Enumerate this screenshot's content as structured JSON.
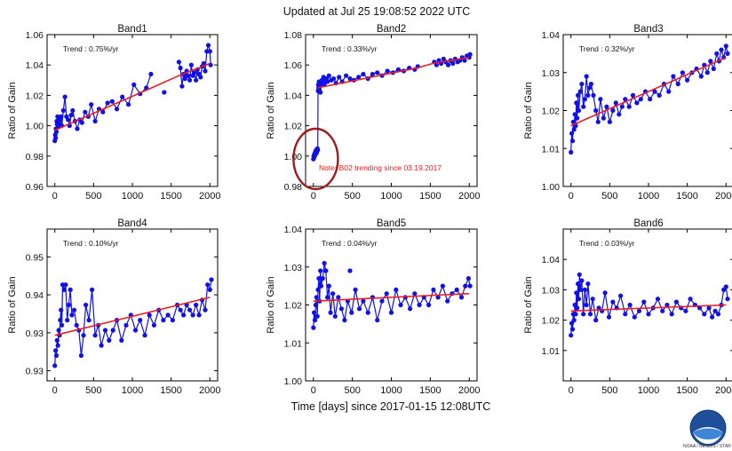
{
  "page": {
    "title": "Updated at Jul 25 19:08:52 2022 UTC",
    "x_title": "Time [days] since 2017-01-15 12:08UTC",
    "credit": "NOAA / NESDIS / STAR"
  },
  "colors": {
    "data": "#1010e8",
    "trend": "#ee1c1c",
    "note": "#ee1c1c",
    "highlight": "#9e1b1b"
  },
  "chart_data": [
    {
      "type": "scatter",
      "title": "Band1",
      "ylabel": "Ratio of Gain",
      "trend_label": "Trend",
      "trend_value": "0.75%/yr",
      "xlim": [
        -100,
        2100
      ],
      "ylim": [
        0.96,
        1.06
      ],
      "xticks": [
        0,
        500,
        1000,
        1500,
        2000
      ],
      "yticks": [
        0.96,
        0.98,
        1.0,
        1.02,
        1.04,
        1.06
      ],
      "ytick_labels": [
        "0.96",
        "0.98",
        "1.00",
        "1.02",
        "1.04",
        "1.06"
      ],
      "trend": [
        [
          0,
          0.997
        ],
        [
          1250,
          1.025
        ],
        [
          1600,
          1.033
        ],
        [
          2000,
          1.041
        ]
      ],
      "series": [
        {
          "x": [
            0,
            5,
            10,
            15,
            20,
            25,
            30,
            35,
            40,
            50,
            60,
            70,
            80,
            90,
            110,
            130,
            150,
            170,
            190,
            210,
            230,
            260,
            290,
            320,
            350,
            390,
            430,
            470,
            520,
            570,
            620,
            680,
            740,
            800,
            870,
            950,
            1020,
            1100,
            1180,
            1240
          ],
          "y": [
            0.99,
            0.994,
            0.992,
            0.998,
            0.996,
            1.003,
            1.001,
            1.006,
            0.999,
            1.005,
            1.001,
            1.004,
            1.006,
            1.0,
            1.01,
            1.019,
            1.006,
            1.004,
            1.0,
            1.007,
            1.01,
            1.003,
            0.998,
            1.004,
            1.002,
            1.009,
            1.006,
            1.014,
            1.003,
            1.011,
            1.009,
            1.015,
            1.016,
            1.011,
            1.019,
            1.014,
            1.027,
            1.021,
            1.025,
            1.034
          ]
        },
        {
          "x": [
            1410
          ],
          "y": [
            1.022
          ]
        },
        {
          "x": [
            1600,
            1620,
            1640,
            1660,
            1680,
            1700,
            1720,
            1740,
            1760,
            1780,
            1800,
            1820,
            1840,
            1860,
            1880,
            1900,
            1920,
            1940,
            1960,
            1980,
            2000,
            2010
          ],
          "y": [
            1.042,
            1.038,
            1.026,
            1.034,
            1.031,
            1.036,
            1.033,
            1.03,
            1.04,
            1.033,
            1.035,
            1.03,
            1.037,
            1.034,
            1.032,
            1.039,
            1.041,
            1.036,
            1.049,
            1.053,
            1.049,
            1.04
          ]
        }
      ]
    },
    {
      "type": "scatter",
      "title": "Band2",
      "ylabel": "Ratio of Gain",
      "trend_label": "Trend",
      "trend_value": "0.33%/yr",
      "note": "Note: B02 trending since 03.19.2017",
      "xlim": [
        -100,
        2100
      ],
      "ylim": [
        0.98,
        1.08
      ],
      "xticks": [
        0,
        500,
        1000,
        1500,
        2000
      ],
      "yticks": [
        0.98,
        1.0,
        1.02,
        1.04,
        1.06,
        1.08
      ],
      "ytick_labels": [
        "0.98",
        "1.00",
        "1.02",
        "1.04",
        "1.06",
        "1.08"
      ],
      "trend": [
        [
          60,
          1.045
        ],
        [
          1330,
          1.058
        ],
        [
          1530,
          1.061
        ],
        [
          2000,
          1.065
        ]
      ],
      "series": [
        {
          "x": [
            0,
            4,
            8,
            12,
            16,
            20,
            24,
            28,
            32,
            36,
            40,
            44,
            48,
            52,
            56,
            60,
            64,
            68,
            72,
            76,
            80,
            90,
            100,
            110,
            120,
            130,
            140,
            160,
            180,
            200,
            230,
            260,
            290,
            330,
            370,
            420,
            470,
            520,
            580,
            640,
            700,
            760,
            820,
            880,
            950,
            1020,
            1090,
            1160,
            1230,
            1300,
            1340
          ],
          "y": [
            0.998,
            1.0,
            0.999,
            1.001,
            1.0,
            1.002,
            1.001,
            1.003,
            1.002,
            1.004,
            1.002,
            1.003,
            1.004,
            1.005,
            1.004,
            1.043,
            1.047,
            1.045,
            1.049,
            1.044,
            1.046,
            1.042,
            1.047,
            1.05,
            1.049,
            1.052,
            1.047,
            1.051,
            1.049,
            1.053,
            1.05,
            1.051,
            1.048,
            1.052,
            1.049,
            1.053,
            1.051,
            1.05,
            1.052,
            1.054,
            1.051,
            1.054,
            1.055,
            1.053,
            1.056,
            1.055,
            1.057,
            1.056,
            1.058,
            1.057,
            1.059
          ]
        },
        {
          "x": [
            1550,
            1580,
            1610,
            1640,
            1670,
            1700,
            1730,
            1760,
            1790,
            1820,
            1850,
            1880,
            1910,
            1940,
            1970,
            2000,
            2010
          ],
          "y": [
            1.062,
            1.06,
            1.063,
            1.061,
            1.064,
            1.062,
            1.06,
            1.063,
            1.061,
            1.064,
            1.062,
            1.063,
            1.065,
            1.063,
            1.066,
            1.065,
            1.067
          ]
        }
      ]
    },
    {
      "type": "scatter",
      "title": "Band3",
      "ylabel": "Ratio of Gain",
      "trend_label": "Trend",
      "trend_value": "0.32%/yr",
      "xlim": [
        -100,
        2100
      ],
      "ylim": [
        1.0,
        1.04
      ],
      "xticks": [
        0,
        500,
        1000,
        1500,
        2000
      ],
      "yticks": [
        1.0,
        1.01,
        1.02,
        1.03,
        1.04
      ],
      "ytick_labels": [
        "1.00",
        "1.01",
        "1.02",
        "1.03",
        "1.04"
      ],
      "trend": [
        [
          0,
          1.016
        ],
        [
          2000,
          1.034
        ]
      ],
      "series": [
        {
          "x": [
            0,
            10,
            20,
            30,
            40,
            50,
            60,
            70,
            80,
            90,
            100,
            120,
            140,
            160,
            180,
            200,
            220,
            240,
            260,
            290,
            320,
            350,
            380,
            420,
            460,
            500,
            540,
            580,
            620,
            660,
            700,
            750,
            800,
            850,
            900,
            960,
            1020,
            1080,
            1140,
            1200,
            1260,
            1320,
            1380,
            1440,
            1500,
            1560,
            1620,
            1680,
            1720,
            1760,
            1800,
            1840,
            1880,
            1910,
            1940,
            1970,
            2000,
            2020
          ],
          "y": [
            1.009,
            1.014,
            1.012,
            1.017,
            1.015,
            1.019,
            1.016,
            1.022,
            1.018,
            1.024,
            1.02,
            1.025,
            1.027,
            1.021,
            1.023,
            1.029,
            1.024,
            1.026,
            1.027,
            1.024,
            1.02,
            1.017,
            1.023,
            1.018,
            1.021,
            1.017,
            1.02,
            1.022,
            1.019,
            1.021,
            1.023,
            1.021,
            1.024,
            1.022,
            1.023,
            1.025,
            1.023,
            1.025,
            1.024,
            1.027,
            1.025,
            1.029,
            1.027,
            1.03,
            1.028,
            1.03,
            1.031,
            1.029,
            1.032,
            1.03,
            1.033,
            1.031,
            1.035,
            1.033,
            1.036,
            1.034,
            1.037,
            1.035
          ]
        }
      ]
    },
    {
      "type": "scatter",
      "title": "Band4",
      "ylabel": "Ratio of Gain",
      "trend_label": "Trend",
      "trend_value": "0.10%/yr",
      "xlim": [
        -100,
        2100
      ],
      "ylim": [
        0.923,
        0.953
      ],
      "xticks": [
        0,
        500,
        1000,
        1500,
        2000
      ],
      "yticks": [
        0.925,
        0.9325,
        0.94,
        0.9475
      ],
      "ytick_labels": [
        "0.93",
        "0.93",
        "0.94",
        "0.95"
      ],
      "trend": [
        [
          0,
          0.932
        ],
        [
          2000,
          0.9395
        ]
      ],
      "series": [
        {
          "x": [
            0,
            10,
            20,
            30,
            40,
            50,
            60,
            70,
            80,
            90,
            100,
            120,
            140,
            160,
            180,
            200,
            220,
            250,
            280,
            310,
            340,
            370,
            400,
            440,
            480,
            520,
            560,
            600,
            650,
            700,
            750,
            800,
            860,
            920,
            980,
            1040,
            1100,
            1160,
            1220,
            1280,
            1340,
            1400,
            1460,
            1520,
            1580,
            1620,
            1660,
            1700,
            1740,
            1780,
            1820,
            1860,
            1900,
            1940,
            1970,
            2000,
            2020
          ],
          "y": [
            0.926,
            0.929,
            0.928,
            0.931,
            0.93,
            0.933,
            0.932,
            0.935,
            0.937,
            0.934,
            0.942,
            0.941,
            0.942,
            0.935,
            0.938,
            0.941,
            0.936,
            0.937,
            0.934,
            0.933,
            0.928,
            0.932,
            0.938,
            0.935,
            0.941,
            0.932,
            0.934,
            0.93,
            0.933,
            0.931,
            0.933,
            0.935,
            0.931,
            0.934,
            0.936,
            0.933,
            0.935,
            0.932,
            0.936,
            0.934,
            0.937,
            0.935,
            0.936,
            0.935,
            0.938,
            0.937,
            0.936,
            0.938,
            0.937,
            0.936,
            0.938,
            0.936,
            0.939,
            0.937,
            0.942,
            0.941,
            0.943
          ]
        }
      ]
    },
    {
      "type": "scatter",
      "title": "Band5",
      "ylabel": "Ratio of Gain",
      "trend_label": "Trend",
      "trend_value": "0.04%/yr",
      "xlim": [
        -100,
        2100
      ],
      "ylim": [
        1.0,
        1.04
      ],
      "xticks": [
        0,
        500,
        1000,
        1500,
        2000
      ],
      "yticks": [
        1.0,
        1.01,
        1.02,
        1.03,
        1.04
      ],
      "ytick_labels": [
        "1.00",
        "1.01",
        "1.02",
        "1.03",
        "1.04"
      ],
      "trend": [
        [
          0,
          1.021
        ],
        [
          2000,
          1.023
        ]
      ],
      "series": [
        {
          "x": [
            0,
            10,
            20,
            30,
            40,
            50,
            60,
            70,
            80,
            90,
            100,
            120,
            140,
            160,
            180,
            200,
            220,
            250,
            280,
            320,
            360,
            400,
            440,
            490,
            540,
            590,
            640,
            700,
            760,
            820,
            880,
            940,
            1000,
            1060,
            1120,
            1180,
            1240,
            1300,
            1360,
            1420,
            1480,
            1540,
            1600,
            1660,
            1720,
            1780,
            1840,
            1900,
            1950,
            1990,
            2010
          ],
          "y": [
            1.014,
            1.018,
            1.016,
            1.02,
            1.022,
            1.017,
            1.024,
            1.027,
            1.021,
            1.029,
            1.025,
            1.027,
            1.031,
            1.029,
            1.022,
            1.025,
            1.018,
            1.023,
            1.017,
            1.022,
            1.019,
            1.016,
            1.021,
            1.018,
            1.024,
            1.019,
            1.021,
            1.018,
            1.022,
            1.016,
            1.021,
            1.023,
            1.018,
            1.024,
            1.02,
            1.022,
            1.019,
            1.023,
            1.02,
            1.022,
            1.02,
            1.024,
            1.022,
            1.025,
            1.021,
            1.023,
            1.024,
            1.022,
            1.025,
            1.027,
            1.025
          ]
        },
        {
          "x": [
            470
          ],
          "y": [
            1.029
          ]
        }
      ]
    },
    {
      "type": "scatter",
      "title": "Band6",
      "ylabel": "Ratio of Gain",
      "trend_label": "Trend",
      "trend_value": "0.03%/yr",
      "xlim": [
        -100,
        2100
      ],
      "ylim": [
        1.0,
        1.05
      ],
      "xticks": [
        0,
        500,
        1000,
        1500,
        2000
      ],
      "yticks": [
        1.01,
        1.02,
        1.03,
        1.04
      ],
      "ytick_labels": [
        "1.01",
        "1.02",
        "1.03",
        "1.04"
      ],
      "trend": [
        [
          0,
          1.023
        ],
        [
          2000,
          1.025
        ]
      ],
      "series": [
        {
          "x": [
            0,
            10,
            20,
            30,
            40,
            50,
            60,
            70,
            80,
            90,
            100,
            110,
            120,
            140,
            160,
            180,
            200,
            220,
            250,
            280,
            320,
            360,
            400,
            440,
            490,
            540,
            590,
            640,
            700,
            760,
            820,
            880,
            940,
            1000,
            1060,
            1120,
            1180,
            1240,
            1300,
            1360,
            1420,
            1480,
            1540,
            1600,
            1660,
            1720,
            1780,
            1820,
            1860,
            1900,
            1940,
            1970,
            2000,
            2020
          ],
          "y": [
            1.015,
            1.019,
            1.017,
            1.022,
            1.02,
            1.025,
            1.022,
            1.029,
            1.024,
            1.032,
            1.027,
            1.035,
            1.03,
            1.033,
            1.022,
            1.03,
            1.025,
            1.032,
            1.022,
            1.027,
            1.02,
            1.024,
            1.023,
            1.029,
            1.021,
            1.026,
            1.024,
            1.028,
            1.022,
            1.025,
            1.021,
            1.023,
            1.026,
            1.022,
            1.024,
            1.027,
            1.023,
            1.025,
            1.022,
            1.026,
            1.024,
            1.023,
            1.027,
            1.025,
            1.024,
            1.022,
            1.024,
            1.021,
            1.023,
            1.022,
            1.025,
            1.03,
            1.031,
            1.027
          ]
        }
      ]
    }
  ]
}
